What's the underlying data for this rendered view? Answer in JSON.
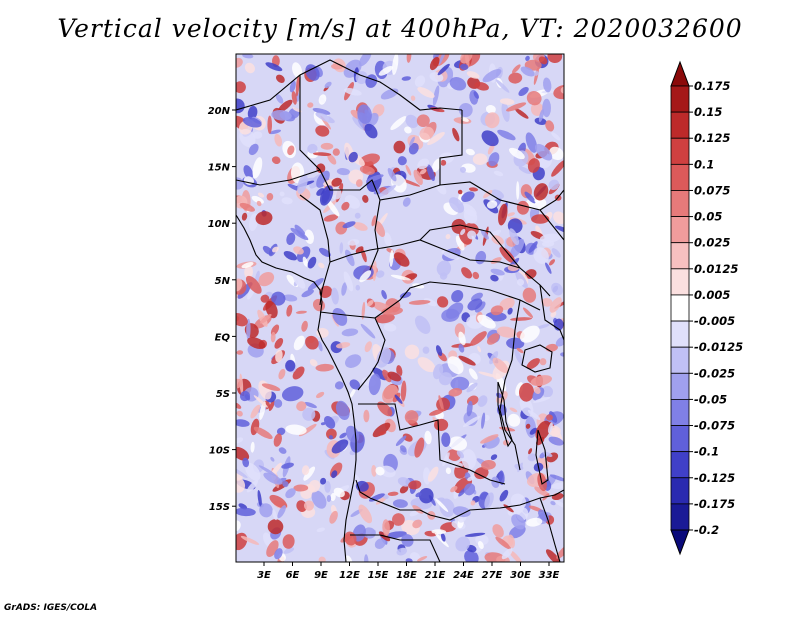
{
  "title": "Vertical velocity [m/s] at 400hPa, VT: 2020032600",
  "credit": "GrADS: IGES/COLA",
  "map": {
    "lat_labels": [
      "20N",
      "15N",
      "10N",
      "5N",
      "EQ",
      "5S",
      "10S",
      "15S"
    ],
    "lon_labels": [
      "3E",
      "6E",
      "9E",
      "12E",
      "15E",
      "18E",
      "21E",
      "24E",
      "27E",
      "30E",
      "33E"
    ]
  },
  "colorbar": {
    "labels": [
      "0.175",
      "0.15",
      "0.125",
      "0.1",
      "0.075",
      "0.05",
      "0.025",
      "0.0125",
      "0.005",
      "-0.005",
      "-0.0125",
      "-0.025",
      "-0.05",
      "-0.075",
      "-0.1",
      "-0.125",
      "-0.175",
      "-0.2"
    ],
    "colors": [
      "#8b0a0a",
      "#a51818",
      "#bd2a2a",
      "#cf4040",
      "#dc5a5a",
      "#e67a7a",
      "#f09c9c",
      "#f7c0c0",
      "#fbe0e0",
      "#ffffff",
      "#e0e0fb",
      "#c0c0f5",
      "#a0a0ee",
      "#8080e6",
      "#6060da",
      "#4040c8",
      "#2a2ab0",
      "#1a1a96",
      "#0a0a7a"
    ]
  }
}
